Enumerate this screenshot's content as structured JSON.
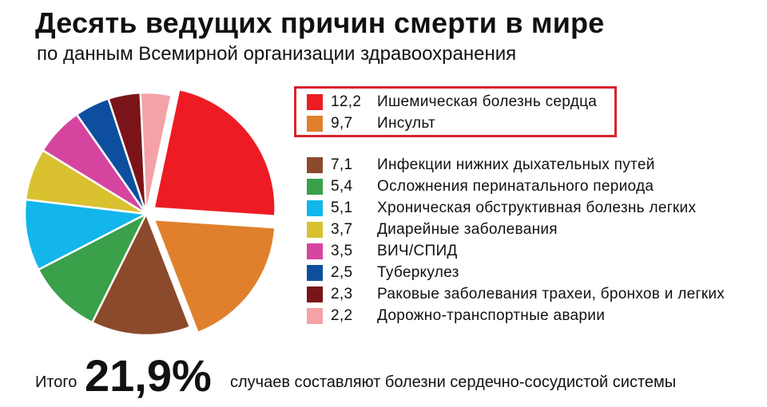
{
  "title": "Десять ведущих причин смерти в мире",
  "subtitle": "по данным Всемирной организации здравоохранения",
  "chart_data": {
    "type": "pie",
    "categories": [
      "Ишемическая болезнь сердца",
      "Инсульт",
      "Инфекции нижних дыхательных путей",
      "Осложнения перинатального периода",
      "Хроническая обструктивная болезнь легких",
      "Диарейные заболевания",
      "ВИЧ/СПИД",
      "Туберкулез",
      "Раковые заболевания трахеи, бронхов и легких",
      "Дорожно-транспортные аварии"
    ],
    "values": [
      12.2,
      9.7,
      7.1,
      5.4,
      5.1,
      3.7,
      3.5,
      2.5,
      2.3,
      2.2
    ],
    "value_labels": [
      "12,2",
      "9,7",
      "7,1",
      "5,4",
      "5,1",
      "3,7",
      "3,5",
      "2,5",
      "2,3",
      "2,2"
    ],
    "colors": [
      "#ed1c24",
      "#e0802c",
      "#8b4a2b",
      "#3aa04a",
      "#12b6ea",
      "#d9c130",
      "#d5459f",
      "#0d4f9e",
      "#7a1418",
      "#f4a1a8"
    ],
    "highlighted": [
      0,
      1
    ],
    "legend_position": "right"
  },
  "footer": {
    "prefix": "Итого",
    "total": "21,9%",
    "suffix": "случаев составляют болезни сердечно-сосудистой системы"
  }
}
